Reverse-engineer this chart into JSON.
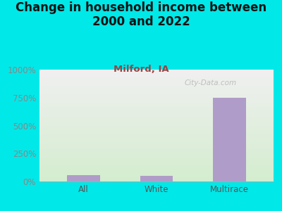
{
  "title": "Change in household income between\n2000 and 2022",
  "subtitle": "Milford, IA",
  "categories": [
    "All",
    "White",
    "Multirace"
  ],
  "values": [
    55,
    50,
    750
  ],
  "bar_color": "#b09cc8",
  "background_color": "#00e8e8",
  "plot_bg_top": "#f0f0f0",
  "plot_bg_bottom": "#d4edcf",
  "title_fontsize": 12,
  "subtitle_fontsize": 9.5,
  "subtitle_color": "#994444",
  "title_color": "#111111",
  "tick_label_color": "#888888",
  "xlabel_color": "#555555",
  "ylim": [
    0,
    1000
  ],
  "yticks": [
    0,
    250,
    500,
    750,
    1000
  ],
  "ytick_labels": [
    "0%",
    "250%",
    "500%",
    "750%",
    "1000%"
  ],
  "watermark": "City-Data.com"
}
